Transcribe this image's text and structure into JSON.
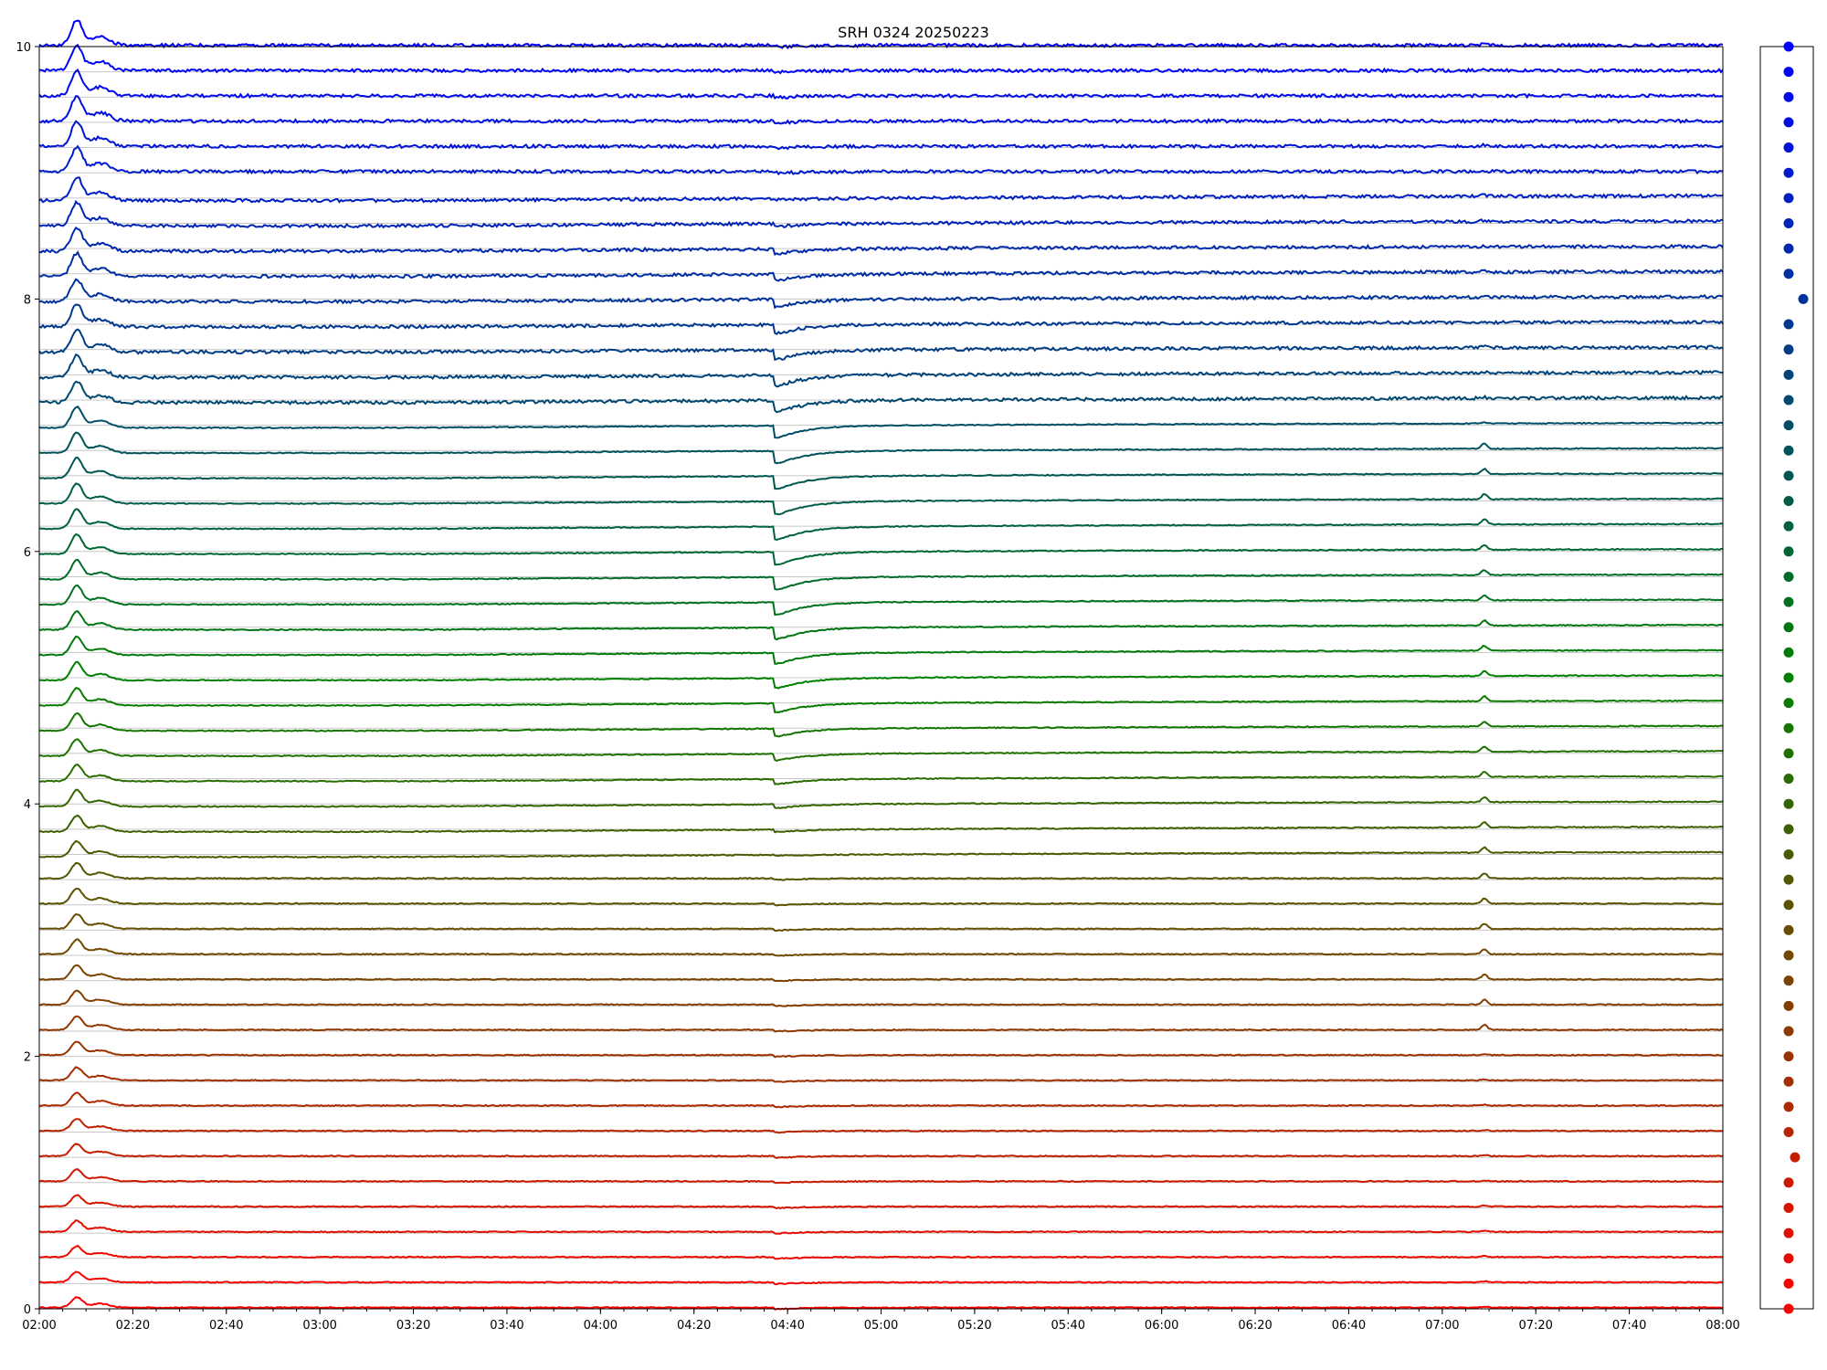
{
  "chart_data": {
    "type": "line",
    "title": "SRH 0324 20250223",
    "xlabel": "",
    "ylabel": "",
    "xlim": [
      "02:00",
      "08:00"
    ],
    "ylim": [
      0,
      10
    ],
    "yticks": [
      0,
      2,
      4,
      6,
      8,
      10
    ],
    "xticks": [
      "02:00",
      "02:20",
      "02:40",
      "03:00",
      "03:20",
      "03:40",
      "04:00",
      "04:20",
      "04:40",
      "05:00",
      "05:20",
      "05:40",
      "06:00",
      "06:20",
      "06:40",
      "07:00",
      "07:20",
      "07:40",
      "08:00"
    ],
    "grid": "horizontal-at-baselines",
    "n_traces": 51,
    "trace_spacing": 0.2,
    "color_start": "#ff0000",
    "color_mid": "#008000",
    "color_end": "#0000ff",
    "common_features": [
      {
        "time": "02:08",
        "description": "impulsive peak in all traces"
      },
      {
        "time": "02:13",
        "description": "secondary peak"
      },
      {
        "time": "04:37",
        "description": "dip in middle/upper traces"
      },
      {
        "time": "07:09",
        "description": "spike in middle traces"
      }
    ],
    "markers_panel": {
      "values": [
        0.0,
        0.2,
        0.4,
        0.6,
        0.8,
        1.0,
        1.2,
        1.4,
        1.6,
        1.8,
        2.0,
        2.2,
        2.4,
        2.6,
        2.8,
        3.0,
        3.2,
        3.4,
        3.6,
        3.8,
        4.0,
        4.2,
        4.4,
        4.6,
        4.8,
        5.0,
        5.2,
        5.4,
        5.6,
        5.8,
        6.0,
        6.2,
        6.4,
        6.6,
        6.8,
        7.0,
        7.2,
        7.4,
        7.6,
        7.8,
        8.0,
        8.2,
        8.4,
        8.6,
        8.8,
        9.0,
        9.2,
        9.4,
        9.6,
        9.8,
        10.0
      ]
    }
  }
}
